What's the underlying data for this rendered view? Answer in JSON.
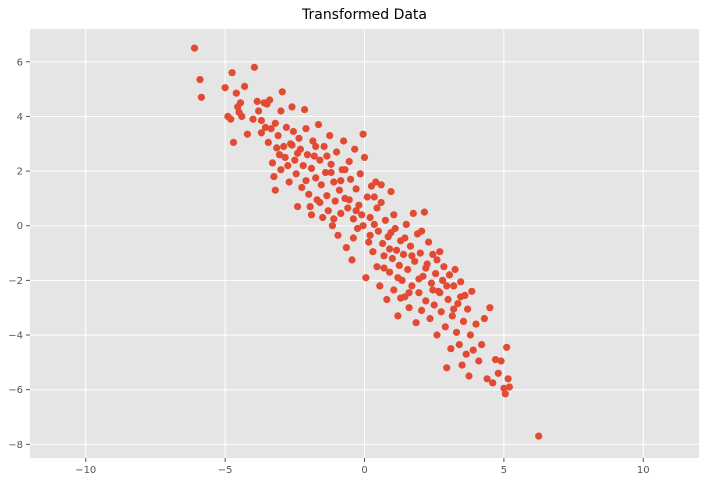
{
  "chart_data": {
    "type": "scatter",
    "title": "Transformed Data",
    "xlabel": "",
    "ylabel": "",
    "xlim": [
      -12,
      12
    ],
    "ylim": [
      -8.5,
      7.2
    ],
    "xticks": [
      -10,
      -5,
      0,
      5,
      10
    ],
    "yticks": [
      -8,
      -6,
      -4,
      -2,
      0,
      2,
      4,
      6
    ],
    "grid": true,
    "point_color": "#E24A33",
    "background_color": "#E5E5E5",
    "grid_color": "#FFFFFF",
    "series": [
      {
        "points": [
          [
            -6.1,
            6.5
          ],
          [
            -5.9,
            5.35
          ],
          [
            -5.85,
            4.7
          ],
          [
            -5.0,
            5.05
          ],
          [
            -4.9,
            4.0
          ],
          [
            -4.8,
            3.9
          ],
          [
            -4.75,
            5.6
          ],
          [
            -4.7,
            3.05
          ],
          [
            -4.6,
            4.85
          ],
          [
            -4.55,
            4.35
          ],
          [
            -4.5,
            4.15
          ],
          [
            -4.45,
            4.5
          ],
          [
            -4.4,
            4.0
          ],
          [
            -4.3,
            5.1
          ],
          [
            -4.2,
            3.35
          ],
          [
            -4.0,
            3.9
          ],
          [
            -3.95,
            5.8
          ],
          [
            -3.85,
            4.55
          ],
          [
            -3.8,
            4.2
          ],
          [
            -3.7,
            3.85
          ],
          [
            -3.6,
            4.5
          ],
          [
            -3.55,
            3.6
          ],
          [
            -3.5,
            4.45
          ],
          [
            -3.45,
            3.05
          ],
          [
            -3.4,
            4.6
          ],
          [
            -3.35,
            3.55
          ],
          [
            -3.3,
            2.3
          ],
          [
            -3.25,
            1.8
          ],
          [
            -3.2,
            1.3
          ],
          [
            -3.15,
            2.85
          ],
          [
            -3.1,
            3.3
          ],
          [
            -3.05,
            2.6
          ],
          [
            -3.0,
            4.2
          ],
          [
            -2.95,
            4.9
          ],
          [
            -2.9,
            2.9
          ],
          [
            -2.85,
            2.5
          ],
          [
            -2.8,
            3.6
          ],
          [
            -2.75,
            2.2
          ],
          [
            -2.7,
            1.6
          ],
          [
            -2.65,
            3.0
          ],
          [
            -2.6,
            4.35
          ],
          [
            -2.55,
            3.45
          ],
          [
            -2.5,
            2.4
          ],
          [
            -2.45,
            1.9
          ],
          [
            -2.4,
            0.7
          ],
          [
            -2.35,
            3.2
          ],
          [
            -2.3,
            2.8
          ],
          [
            -2.25,
            1.4
          ],
          [
            -2.2,
            2.2
          ],
          [
            -2.15,
            4.25
          ],
          [
            -2.1,
            3.55
          ],
          [
            -2.05,
            2.6
          ],
          [
            -2.0,
            1.15
          ],
          [
            -1.95,
            0.7
          ],
          [
            -1.9,
            2.1
          ],
          [
            -1.85,
            3.1
          ],
          [
            -1.8,
            2.55
          ],
          [
            -1.75,
            1.75
          ],
          [
            -1.7,
            0.95
          ],
          [
            -1.65,
            3.7
          ],
          [
            -1.6,
            2.4
          ],
          [
            -1.55,
            1.5
          ],
          [
            -1.5,
            0.3
          ],
          [
            -1.45,
            2.9
          ],
          [
            -1.4,
            1.95
          ],
          [
            -1.35,
            1.1
          ],
          [
            -1.3,
            0.55
          ],
          [
            -1.25,
            3.3
          ],
          [
            -1.2,
            2.25
          ],
          [
            -1.15,
            0.0
          ],
          [
            -1.1,
            1.6
          ],
          [
            -1.05,
            0.9
          ],
          [
            -1.0,
            2.7
          ],
          [
            -0.95,
            -0.35
          ],
          [
            -0.9,
            1.3
          ],
          [
            -0.85,
            0.45
          ],
          [
            -0.8,
            2.05
          ],
          [
            -0.75,
            3.1
          ],
          [
            -0.7,
            1.0
          ],
          [
            -0.65,
            -0.8
          ],
          [
            -0.6,
            0.65
          ],
          [
            -0.55,
            2.35
          ],
          [
            -0.5,
            1.7
          ],
          [
            -0.45,
            -1.25
          ],
          [
            -0.4,
            0.25
          ],
          [
            -0.35,
            2.8
          ],
          [
            -0.3,
            1.35
          ],
          [
            -0.25,
            -0.1
          ],
          [
            -0.2,
            0.75
          ],
          [
            -0.15,
            1.9
          ],
          [
            -0.1,
            0.4
          ],
          [
            -0.05,
            3.35
          ],
          [
            0.0,
            2.5
          ],
          [
            0.05,
            -1.9
          ],
          [
            0.1,
            1.05
          ],
          [
            0.15,
            -0.6
          ],
          [
            0.2,
            0.3
          ],
          [
            0.25,
            1.45
          ],
          [
            0.3,
            -0.95
          ],
          [
            0.35,
            0.05
          ],
          [
            0.4,
            1.6
          ],
          [
            0.45,
            -1.5
          ],
          [
            0.5,
            -0.2
          ],
          [
            0.55,
            -2.2
          ],
          [
            0.6,
            0.85
          ],
          [
            0.65,
            -0.65
          ],
          [
            0.7,
            -1.1
          ],
          [
            0.75,
            0.2
          ],
          [
            0.8,
            -2.7
          ],
          [
            0.85,
            -0.4
          ],
          [
            0.9,
            -1.7
          ],
          [
            0.95,
            1.25
          ],
          [
            1.0,
            -1.2
          ],
          [
            1.05,
            -2.35
          ],
          [
            1.1,
            -0.1
          ],
          [
            1.15,
            -0.9
          ],
          [
            1.2,
            -3.3
          ],
          [
            1.25,
            -1.45
          ],
          [
            1.3,
            -0.55
          ],
          [
            1.35,
            -2.0
          ],
          [
            1.4,
            -1.05
          ],
          [
            1.45,
            -2.6
          ],
          [
            1.5,
            0.05
          ],
          [
            1.55,
            -1.6
          ],
          [
            1.6,
            -3.0
          ],
          [
            1.65,
            -0.75
          ],
          [
            1.7,
            -2.2
          ],
          [
            1.75,
            0.45
          ],
          [
            1.8,
            -1.3
          ],
          [
            1.85,
            -3.55
          ],
          [
            1.9,
            -0.3
          ],
          [
            1.95,
            -2.45
          ],
          [
            2.0,
            -1.0
          ],
          [
            2.05,
            -3.1
          ],
          [
            2.1,
            -1.85
          ],
          [
            2.15,
            0.5
          ],
          [
            2.2,
            -2.75
          ],
          [
            2.25,
            -1.4
          ],
          [
            2.3,
            -0.6
          ],
          [
            2.35,
            -3.4
          ],
          [
            2.4,
            -2.1
          ],
          [
            2.45,
            -1.05
          ],
          [
            2.5,
            -2.9
          ],
          [
            2.55,
            -1.75
          ],
          [
            2.6,
            -4.0
          ],
          [
            2.65,
            -2.4
          ],
          [
            2.7,
            -0.95
          ],
          [
            2.75,
            -3.15
          ],
          [
            2.8,
            -2.0
          ],
          [
            2.85,
            -1.5
          ],
          [
            2.9,
            -3.7
          ],
          [
            2.95,
            -5.2
          ],
          [
            3.0,
            -2.7
          ],
          [
            3.05,
            -1.8
          ],
          [
            3.1,
            -4.5
          ],
          [
            3.15,
            -3.3
          ],
          [
            3.2,
            -2.2
          ],
          [
            3.25,
            -1.6
          ],
          [
            3.3,
            -3.9
          ],
          [
            3.35,
            -2.85
          ],
          [
            3.4,
            -4.35
          ],
          [
            3.45,
            -2.05
          ],
          [
            3.5,
            -5.1
          ],
          [
            3.55,
            -3.5
          ],
          [
            3.6,
            -2.55
          ],
          [
            3.65,
            -4.7
          ],
          [
            3.7,
            -3.05
          ],
          [
            3.75,
            -5.5
          ],
          [
            3.8,
            -4.0
          ],
          [
            3.85,
            -2.4
          ],
          [
            3.9,
            -4.55
          ],
          [
            4.0,
            -3.6
          ],
          [
            4.1,
            -4.95
          ],
          [
            4.2,
            -4.35
          ],
          [
            4.3,
            -3.4
          ],
          [
            4.4,
            -5.6
          ],
          [
            4.5,
            -3.0
          ],
          [
            4.6,
            -5.75
          ],
          [
            4.7,
            -4.9
          ],
          [
            4.8,
            -5.4
          ],
          [
            4.9,
            -4.95
          ],
          [
            5.0,
            -5.95
          ],
          [
            5.05,
            -6.15
          ],
          [
            5.1,
            -4.45
          ],
          [
            5.15,
            -5.6
          ],
          [
            5.2,
            -5.9
          ],
          [
            6.25,
            -7.7
          ],
          [
            -3.7,
            3.4
          ],
          [
            -3.2,
            3.75
          ],
          [
            -2.6,
            2.95
          ],
          [
            -2.1,
            1.65
          ],
          [
            -1.75,
            2.9
          ],
          [
            -1.6,
            0.85
          ],
          [
            -1.35,
            2.55
          ],
          [
            -1.1,
            0.25
          ],
          [
            -0.85,
            1.65
          ],
          [
            -0.55,
            0.95
          ],
          [
            -0.3,
            0.55
          ],
          [
            -0.05,
            0.0
          ],
          [
            0.2,
            -0.35
          ],
          [
            0.45,
            0.65
          ],
          [
            0.7,
            -1.55
          ],
          [
            0.95,
            -0.25
          ],
          [
            1.2,
            -1.9
          ],
          [
            1.45,
            -0.45
          ],
          [
            1.7,
            -1.1
          ],
          [
            1.95,
            -1.95
          ],
          [
            2.2,
            -1.55
          ],
          [
            2.45,
            -2.35
          ],
          [
            2.7,
            -2.45
          ],
          [
            2.95,
            -2.2
          ],
          [
            3.2,
            -3.05
          ],
          [
            3.45,
            -2.6
          ],
          [
            0.6,
            1.5
          ],
          [
            0.9,
            -0.85
          ],
          [
            -1.9,
            0.4
          ],
          [
            -2.4,
            2.65
          ],
          [
            -0.7,
            2.05
          ],
          [
            1.3,
            -2.65
          ],
          [
            -1.2,
            1.95
          ],
          [
            -0.4,
            -0.45
          ],
          [
            0.35,
            1.05
          ],
          [
            1.05,
            0.4
          ],
          [
            1.6,
            -2.45
          ],
          [
            2.05,
            -0.2
          ],
          [
            2.6,
            -1.25
          ],
          [
            -3.0,
            2.05
          ]
        ]
      }
    ]
  }
}
